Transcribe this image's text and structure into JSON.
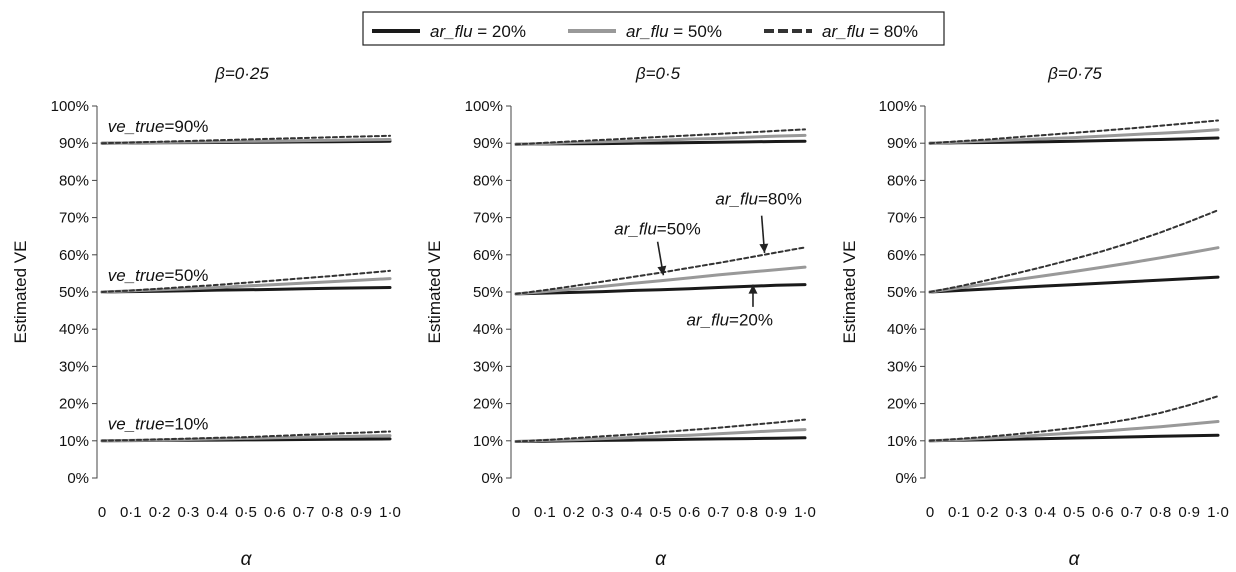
{
  "legend": {
    "items": [
      {
        "prefix": "ar_flu",
        "suffix": " = 20%",
        "color": "#1a1a1a",
        "dash": "solid"
      },
      {
        "prefix": "ar_flu",
        "suffix": " = 50%",
        "color": "#999999",
        "dash": "solid"
      },
      {
        "prefix": "ar_flu",
        "suffix": " = 80%",
        "color": "#333333",
        "dash": "dashed"
      }
    ]
  },
  "chart_data": [
    {
      "type": "line",
      "title": "β=0·25",
      "xlabel": "α",
      "ylabel": "Estimated VE",
      "x": [
        0,
        0.1,
        0.2,
        0.3,
        0.4,
        0.5,
        0.6,
        0.7,
        0.8,
        0.9,
        1.0
      ],
      "xticks": [
        "0",
        "0·1",
        "0·2",
        "0·3",
        "0·4",
        "0·5",
        "0·6",
        "0·7",
        "0·8",
        "0·9",
        "1·0"
      ],
      "yticks": [
        "0%",
        "10%",
        "20%",
        "30%",
        "40%",
        "50%",
        "60%",
        "70%",
        "80%",
        "90%",
        "100%"
      ],
      "ylim": [
        0,
        100
      ],
      "show_ylabel": true,
      "series": [
        {
          "name": "ar_flu = 20%",
          "group": "ve_true=90%",
          "values": [
            90,
            90.05,
            90.1,
            90.15,
            90.2,
            90.25,
            90.3,
            90.35,
            90.4,
            90.45,
            90.5
          ]
        },
        {
          "name": "ar_flu = 50%",
          "group": "ve_true=90%",
          "values": [
            90,
            90.1,
            90.2,
            90.3,
            90.4,
            90.5,
            90.6,
            90.7,
            90.8,
            90.9,
            91.0
          ]
        },
        {
          "name": "ar_flu = 80%",
          "group": "ve_true=90%",
          "values": [
            90,
            90.2,
            90.4,
            90.6,
            90.8,
            91.0,
            91.2,
            91.4,
            91.6,
            91.8,
            92.0
          ]
        },
        {
          "name": "ar_flu = 20%",
          "group": "ve_true=50%",
          "values": [
            50,
            50.1,
            50.2,
            50.35,
            50.5,
            50.6,
            50.7,
            50.85,
            51.0,
            51.1,
            51.2
          ]
        },
        {
          "name": "ar_flu = 50%",
          "group": "ve_true=50%",
          "values": [
            50,
            50.3,
            50.6,
            50.9,
            51.2,
            51.6,
            52.0,
            52.4,
            52.8,
            53.2,
            53.6
          ]
        },
        {
          "name": "ar_flu = 80%",
          "group": "ve_true=50%",
          "values": [
            50,
            50.4,
            50.9,
            51.4,
            51.9,
            52.5,
            53.1,
            53.7,
            54.3,
            55.0,
            55.7
          ]
        },
        {
          "name": "ar_flu = 20%",
          "group": "ve_true=10%",
          "values": [
            10,
            10.05,
            10.1,
            10.15,
            10.2,
            10.25,
            10.3,
            10.35,
            10.4,
            10.45,
            10.5
          ]
        },
        {
          "name": "ar_flu = 50%",
          "group": "ve_true=10%",
          "values": [
            10,
            10.1,
            10.2,
            10.35,
            10.5,
            10.65,
            10.8,
            10.95,
            11.1,
            11.25,
            11.4
          ]
        },
        {
          "name": "ar_flu = 80%",
          "group": "ve_true=10%",
          "values": [
            10,
            10.2,
            10.4,
            10.6,
            10.8,
            11.0,
            11.3,
            11.6,
            11.9,
            12.2,
            12.5
          ]
        }
      ],
      "annotations": [
        {
          "italic": "ve_true",
          "text": "=90%",
          "x": 0.02,
          "y": 93
        },
        {
          "italic": "ve_true",
          "text": "=50%",
          "x": 0.02,
          "y": 53
        },
        {
          "italic": "ve_true",
          "text": "=10%",
          "x": 0.02,
          "y": 13
        }
      ],
      "arrows": []
    },
    {
      "type": "line",
      "title": "β=0·5",
      "xlabel": "α",
      "ylabel": "Estimated VE",
      "x": [
        0,
        0.1,
        0.2,
        0.3,
        0.4,
        0.5,
        0.6,
        0.7,
        0.8,
        0.9,
        1.0
      ],
      "xticks": [
        "0",
        "0·1",
        "0·2",
        "0·3",
        "0·4",
        "0·5",
        "0·6",
        "0·7",
        "0·8",
        "0·9",
        "1·0"
      ],
      "yticks": [
        "0%",
        "10%",
        "20%",
        "30%",
        "40%",
        "50%",
        "60%",
        "70%",
        "80%",
        "90%",
        "100%"
      ],
      "ylim": [
        0,
        100
      ],
      "show_ylabel": true,
      "series": [
        {
          "name": "ar_flu = 20%",
          "group": "ve_true=90%",
          "values": [
            89.7,
            89.8,
            89.85,
            89.9,
            90.0,
            90.05,
            90.15,
            90.25,
            90.35,
            90.45,
            90.5
          ]
        },
        {
          "name": "ar_flu = 50%",
          "group": "ve_true=90%",
          "values": [
            89.7,
            89.9,
            90.2,
            90.4,
            90.6,
            90.8,
            91.1,
            91.3,
            91.6,
            91.9,
            92.1
          ]
        },
        {
          "name": "ar_flu = 80%",
          "group": "ve_true=90%",
          "values": [
            89.7,
            90.1,
            90.5,
            90.9,
            91.3,
            91.7,
            92.1,
            92.5,
            92.9,
            93.3,
            93.7
          ]
        },
        {
          "name": "ar_flu = 20%",
          "group": "ve_true=50%",
          "values": [
            49.5,
            49.7,
            49.9,
            50.1,
            50.4,
            50.6,
            50.9,
            51.2,
            51.5,
            51.8,
            52.0
          ]
        },
        {
          "name": "ar_flu = 50%",
          "group": "ve_true=50%",
          "values": [
            49.5,
            50.1,
            50.8,
            51.5,
            52.3,
            53.0,
            53.8,
            54.6,
            55.3,
            56.0,
            56.7
          ]
        },
        {
          "name": "ar_flu = 80%",
          "group": "ve_true=50%",
          "values": [
            49.5,
            50.5,
            51.6,
            52.8,
            54.0,
            55.2,
            56.5,
            57.8,
            59.2,
            60.6,
            62.0
          ]
        },
        {
          "name": "ar_flu = 20%",
          "group": "ve_true=10%",
          "values": [
            9.8,
            9.9,
            10.0,
            10.1,
            10.2,
            10.3,
            10.4,
            10.5,
            10.6,
            10.7,
            10.8
          ]
        },
        {
          "name": "ar_flu = 50%",
          "group": "ve_true=10%",
          "values": [
            9.8,
            10.1,
            10.3,
            10.6,
            10.9,
            11.2,
            11.5,
            11.9,
            12.3,
            12.7,
            13.0
          ]
        },
        {
          "name": "ar_flu = 80%",
          "group": "ve_true=10%",
          "values": [
            9.8,
            10.2,
            10.7,
            11.2,
            11.7,
            12.3,
            12.9,
            13.5,
            14.2,
            14.9,
            15.7
          ]
        }
      ],
      "annotations": [
        {
          "italic": "ar_flu",
          "text": "=50%",
          "x": 0.34,
          "y": 65.5
        },
        {
          "italic": "ar_flu",
          "text": "=80%",
          "x": 0.69,
          "y": 73.5
        },
        {
          "italic": "ar_flu",
          "text": "=20%",
          "x": 0.59,
          "y": 41.0
        }
      ],
      "arrows": [
        {
          "from_x": 0.49,
          "from_y": 63.5,
          "to_x": 0.51,
          "to_y": 54.5
        },
        {
          "from_x": 0.85,
          "from_y": 70.5,
          "to_x": 0.86,
          "to_y": 60.5
        },
        {
          "from_x": 0.82,
          "from_y": 46.0,
          "to_x": 0.82,
          "to_y": 52.0
        }
      ]
    },
    {
      "type": "line",
      "title": "β=0·75",
      "xlabel": "α",
      "ylabel": "Estimated VE",
      "x": [
        0,
        0.1,
        0.2,
        0.3,
        0.4,
        0.5,
        0.6,
        0.7,
        0.8,
        0.9,
        1.0
      ],
      "xticks": [
        "0",
        "0·1",
        "0·2",
        "0·3",
        "0·4",
        "0·5",
        "0·6",
        "0·7",
        "0·8",
        "0·9",
        "1·0"
      ],
      "yticks": [
        "0%",
        "10%",
        "20%",
        "30%",
        "40%",
        "50%",
        "60%",
        "70%",
        "80%",
        "90%",
        "100%"
      ],
      "ylim": [
        0,
        100
      ],
      "show_ylabel": true,
      "series": [
        {
          "name": "ar_flu = 20%",
          "group": "ve_true=90%",
          "values": [
            90,
            90.1,
            90.2,
            90.3,
            90.4,
            90.55,
            90.7,
            90.85,
            91.0,
            91.2,
            91.4
          ]
        },
        {
          "name": "ar_flu = 50%",
          "group": "ve_true=90%",
          "values": [
            90,
            90.3,
            90.6,
            90.9,
            91.2,
            91.5,
            91.9,
            92.3,
            92.7,
            93.1,
            93.6
          ]
        },
        {
          "name": "ar_flu = 80%",
          "group": "ve_true=90%",
          "values": [
            90,
            90.5,
            91.0,
            91.6,
            92.2,
            92.8,
            93.4,
            94.0,
            94.7,
            95.4,
            96.1
          ]
        },
        {
          "name": "ar_flu = 20%",
          "group": "ve_true=50%",
          "values": [
            50,
            50.4,
            50.8,
            51.2,
            51.6,
            52.0,
            52.4,
            52.8,
            53.2,
            53.6,
            54.0
          ]
        },
        {
          "name": "ar_flu = 50%",
          "group": "ve_true=50%",
          "values": [
            50,
            51.1,
            52.2,
            53.3,
            54.4,
            55.5,
            56.7,
            57.9,
            59.2,
            60.5,
            61.9
          ]
        },
        {
          "name": "ar_flu = 80%",
          "group": "ve_true=50%",
          "values": [
            50,
            51.5,
            53.2,
            55.0,
            56.9,
            58.9,
            61.0,
            63.4,
            66.0,
            68.9,
            72.0
          ]
        },
        {
          "name": "ar_flu = 20%",
          "group": "ve_true=10%",
          "values": [
            10,
            10.15,
            10.3,
            10.45,
            10.6,
            10.75,
            10.9,
            11.05,
            11.2,
            11.35,
            11.5
          ]
        },
        {
          "name": "ar_flu = 50%",
          "group": "ve_true=10%",
          "values": [
            10,
            10.3,
            10.7,
            11.1,
            11.6,
            12.1,
            12.6,
            13.2,
            13.8,
            14.5,
            15.2
          ]
        },
        {
          "name": "ar_flu = 80%",
          "group": "ve_true=10%",
          "values": [
            10,
            10.5,
            11.1,
            11.8,
            12.6,
            13.5,
            14.6,
            15.9,
            17.5,
            19.6,
            22.0
          ]
        }
      ],
      "annotations": [],
      "arrows": []
    }
  ]
}
